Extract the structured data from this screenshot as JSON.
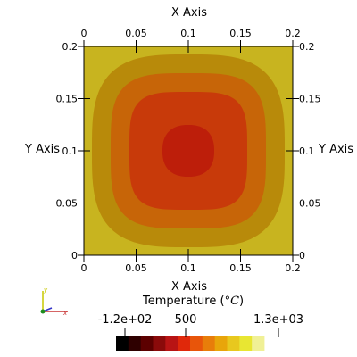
{
  "chart_data": {
    "type": "heatmap",
    "x_axis": {
      "title": "X Axis",
      "ticks": [
        "0",
        "0.05",
        "0.1",
        "0.15",
        "0.2"
      ],
      "range": [
        0,
        0.2
      ]
    },
    "y_axis": {
      "title": "Y Axis",
      "ticks": [
        "0",
        "0.05",
        "0.1",
        "0.15",
        "0.2"
      ],
      "range": [
        0,
        0.2
      ]
    },
    "field": {
      "center": [
        0.1,
        0.1
      ],
      "contour_levels_outer_to_inner": [
        {
          "color": "#c8b41f"
        },
        {
          "color": "#b88a0a"
        },
        {
          "color": "#c76508"
        },
        {
          "color": "#c83a0a"
        },
        {
          "color": "#bd1e0a"
        }
      ]
    },
    "colorbar": {
      "title": "Temperature (°C)",
      "title_text": "Temperature (",
      "title_unit": "°C",
      "title_close": ")",
      "range": [
        -120,
        1300
      ],
      "tick_labels": [
        {
          "label": "-1.2e+02",
          "value": -120
        },
        {
          "label": "500",
          "value": 500
        },
        {
          "label": "1.3e+03",
          "value": 1300
        }
      ],
      "colors": [
        "#000000",
        "#2e0000",
        "#5c0000",
        "#8a0a0a",
        "#b81414",
        "#e0280a",
        "#e8550a",
        "#e87d0a",
        "#e8a50a",
        "#e8c81e",
        "#e8e632",
        "#f0f096"
      ]
    },
    "orientation_axes": {
      "y_label": "y",
      "x_label": "x"
    }
  }
}
